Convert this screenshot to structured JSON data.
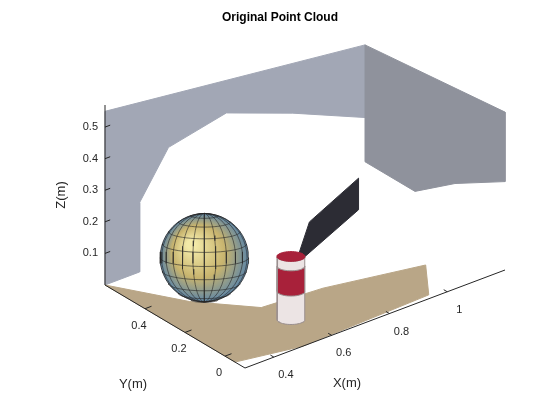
{
  "chart_data": {
    "type": "scatter3d",
    "title": "Original Point Cloud",
    "x_label": "X(m)",
    "y_label": "Y(m)",
    "z_label": "Z(m)",
    "xlim": [
      0.3,
      1.2
    ],
    "ylim": [
      -0.1,
      0.6
    ],
    "zlim": [
      0,
      0.57
    ],
    "xticks": [
      0.4,
      0.6,
      0.8,
      1
    ],
    "yticks": [
      0,
      0.2,
      0.4
    ],
    "zticks": [
      0.1,
      0.2,
      0.3,
      0.4,
      0.5
    ],
    "surfaces": [
      {
        "color": "#a2a7b5",
        "points": [
          [
            0.3,
            0.6,
            0
          ],
          [
            0.3,
            0.6,
            0.55
          ],
          [
            1.2,
            0.6,
            0.45
          ],
          [
            1.2,
            0.6,
            0.22
          ],
          [
            0.95,
            0.6,
            0.32
          ],
          [
            0.72,
            0.6,
            0.4
          ],
          [
            0.52,
            0.6,
            0.36
          ],
          [
            0.42,
            0.6,
            0.22
          ],
          [
            0.42,
            0.6,
            0
          ]
        ]
      },
      {
        "color": "#8f929c",
        "points": [
          [
            1.2,
            0.6,
            0.45
          ],
          [
            1.2,
            -0.1,
            0.5
          ],
          [
            1.2,
            -0.1,
            0.28
          ],
          [
            1.2,
            0.15,
            0.18
          ],
          [
            1.2,
            0.35,
            0.08
          ],
          [
            1.2,
            0.6,
            0.08
          ]
        ]
      },
      {
        "color": "#b9a687",
        "points": [
          [
            0.3,
            0.6,
            0
          ],
          [
            0.3,
            -0.05,
            0
          ],
          [
            0.5,
            -0.1,
            0
          ],
          [
            0.95,
            -0.08,
            0
          ],
          [
            1.05,
            0.08,
            0
          ],
          [
            0.75,
            0.16,
            0
          ],
          [
            0.55,
            0.18,
            0
          ],
          [
            0.42,
            0.35,
            0
          ]
        ]
      },
      {
        "color": "#2c2c34",
        "points": [
          [
            0.75,
            0.3,
            0.02
          ],
          [
            0.97,
            0.3,
            0.12
          ],
          [
            0.97,
            0.3,
            0.22
          ],
          [
            0.8,
            0.3,
            0.14
          ]
        ]
      }
    ],
    "sphere": {
      "center": [
        0.45,
        0.32,
        0.14
      ],
      "radius": 0.14,
      "color": "#c8b46e"
    },
    "cylinder": {
      "center": [
        0.57,
        0.06
      ],
      "radius": 0.045,
      "height": 0.2,
      "colors": [
        "#a8213a",
        "#ece4e4"
      ]
    }
  }
}
